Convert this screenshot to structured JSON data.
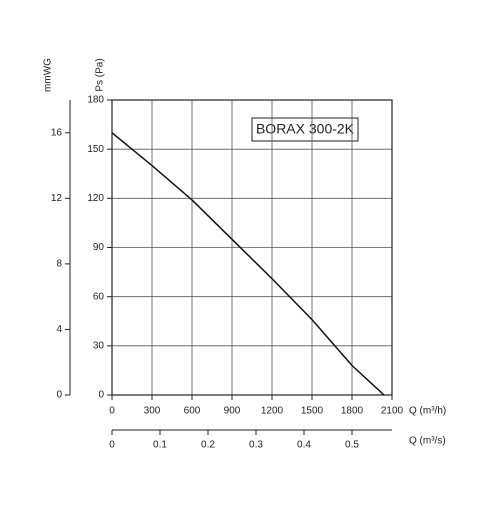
{
  "chart_data": {
    "type": "line",
    "title": "BORAX 300-2K",
    "xlabel": "Q (m³/h)",
    "ylabel": "Ps (Pa)",
    "x": [
      0,
      300,
      600,
      900,
      1200,
      1500,
      1800,
      2040
    ],
    "series": [
      {
        "color": "#111111",
        "values": [
          160,
          140,
          119,
          95,
          71,
          46,
          18,
          0
        ]
      }
    ],
    "xlim": [
      0,
      2100
    ],
    "xticks": [
      0,
      300,
      600,
      900,
      1200,
      1500,
      1800,
      2100
    ],
    "ylim": [
      0,
      180
    ],
    "yticks": [
      0,
      30,
      60,
      90,
      120,
      150,
      180
    ],
    "y2label": "mmWG",
    "y2lim": [
      0,
      18
    ],
    "y2ticks": [
      0,
      4,
      8,
      12,
      16
    ],
    "x2label": "Q (m³/s)",
    "x2lim": [
      0,
      0.5833
    ],
    "x2ticks": [
      0,
      0.1,
      0.2,
      0.3,
      0.4,
      0.5
    ],
    "grid": true
  }
}
